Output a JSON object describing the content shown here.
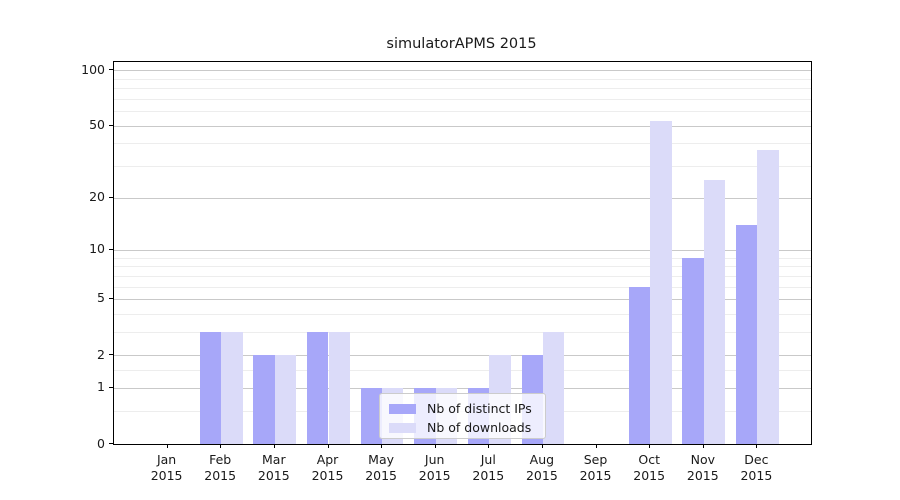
{
  "figure": {
    "title": "simulatorAPMS 2015"
  },
  "chart_data": {
    "type": "bar",
    "title": "simulatorAPMS 2015",
    "categories": [
      "Jan",
      "Feb",
      "Mar",
      "Apr",
      "May",
      "Jun",
      "Jul",
      "Aug",
      "Sep",
      "Oct",
      "Nov",
      "Dec"
    ],
    "category_year": "2015",
    "series": [
      {
        "name": "Nb of distinct IPs",
        "color": "#a7a7f9",
        "values": [
          0,
          3,
          2,
          3,
          1,
          1,
          1,
          2,
          0,
          6,
          9,
          14
        ]
      },
      {
        "name": "Nb of downloads",
        "color": "#dbdbf9",
        "values": [
          0,
          3,
          2,
          3,
          1,
          1,
          2,
          3,
          0,
          53,
          25,
          37
        ]
      }
    ],
    "yscale": "log1p",
    "ylim": [
      0,
      111
    ],
    "yticks_major": [
      0,
      1,
      2,
      5,
      10,
      20,
      50,
      100
    ],
    "yticks_minor": [
      0.5,
      1.5,
      3,
      4,
      6,
      7,
      8,
      9,
      30,
      40,
      60,
      70,
      80,
      90
    ],
    "grid": "horizontal",
    "xlabel": "",
    "ylabel": "",
    "legend_position": "lower-center",
    "legend": {
      "items": [
        {
          "label": "Nb of distinct IPs",
          "color": "#a7a7f9"
        },
        {
          "label": "Nb of downloads",
          "color": "#dbdbf9"
        }
      ]
    }
  },
  "colors": {
    "background": "#ffffff",
    "bar_distinct_ips": "#a7a7f9",
    "bar_downloads": "#dbdbf9",
    "grid_major": "#c9c9c9",
    "grid_minor": "#ededed",
    "spine": "#000000"
  }
}
